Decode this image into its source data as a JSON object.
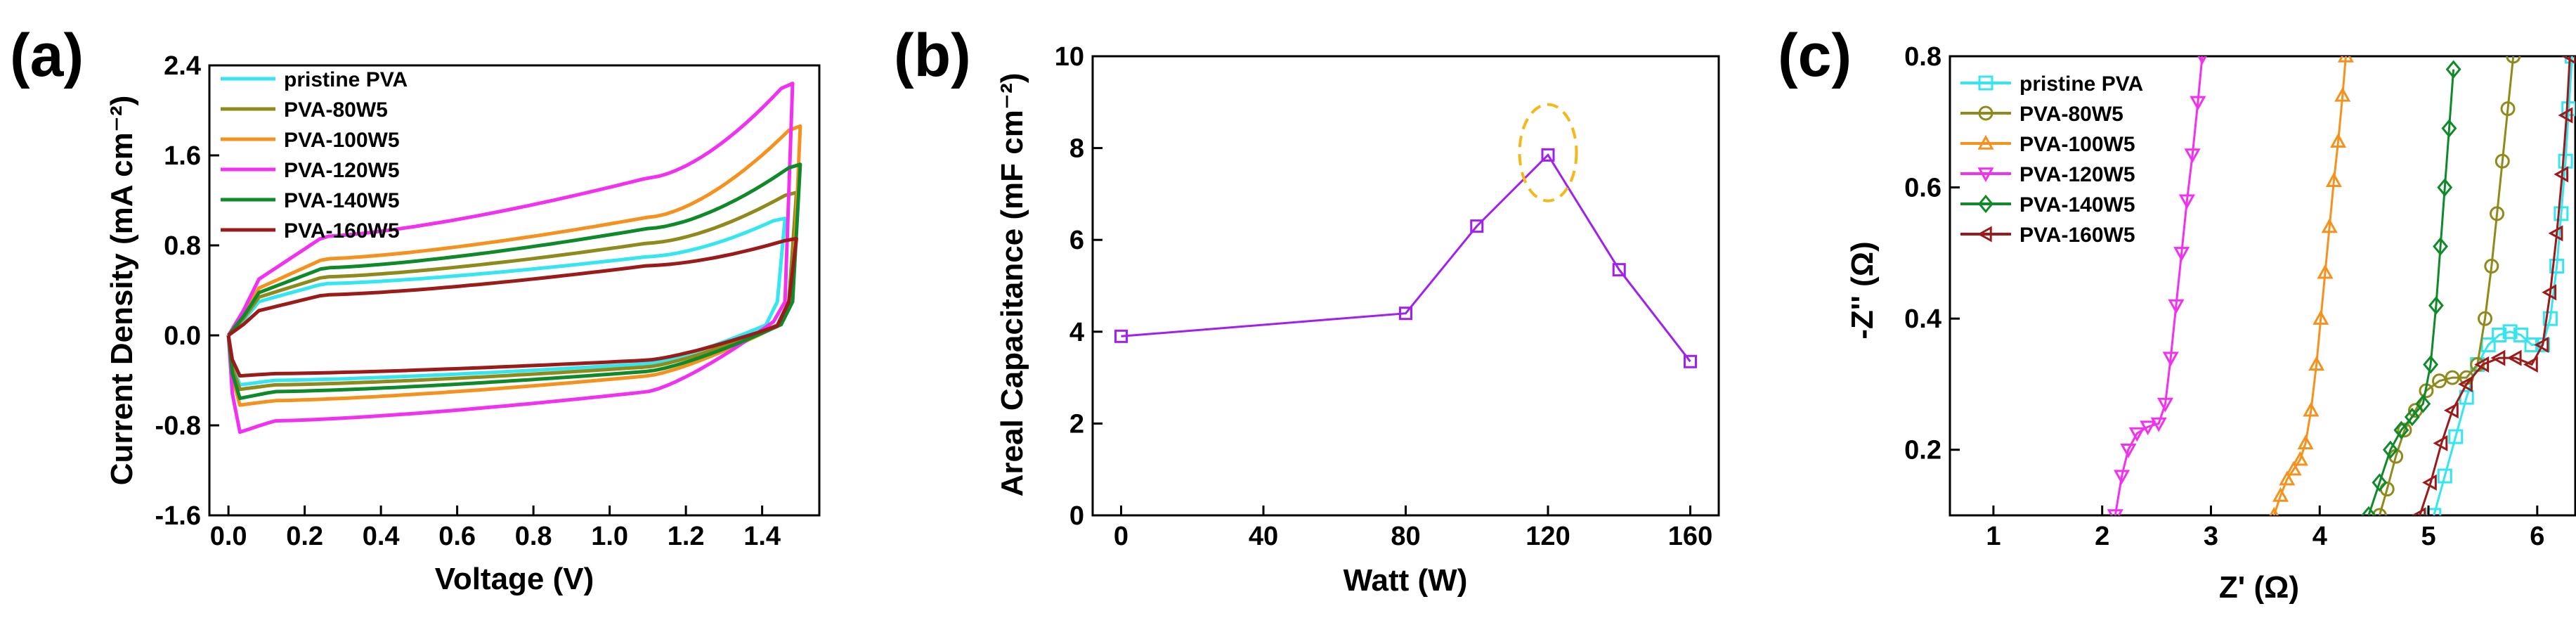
{
  "chart_data": [
    {
      "panel": "(a)",
      "type": "line",
      "title": "",
      "xlabel": "Voltage (V)",
      "ylabel": "Current Density (mA cm⁻²)",
      "xlim": [
        -0.05,
        1.55
      ],
      "ylim": [
        -1.6,
        2.4
      ],
      "xticks": [
        0.0,
        0.2,
        0.4,
        0.6,
        0.8,
        1.0,
        1.2,
        1.4
      ],
      "xtick_labels": [
        "0.0",
        "0.2",
        "0.4",
        "0.6",
        "0.8",
        "1.0",
        "1.2",
        "1.4"
      ],
      "yticks": [
        -1.6,
        -0.8,
        0.0,
        0.8,
        1.6,
        2.4
      ],
      "ytick_labels": [
        "-1.6",
        "-0.8",
        "0.0",
        "0.8",
        "1.6",
        "2.4"
      ],
      "legend_position": "top-left",
      "series": [
        {
          "name": "pristine PVA",
          "color": "#33e6f0",
          "cv": {
            "vmax": 1.46,
            "upper_start": 0.3,
            "upper_mid": 0.46,
            "upper_pre": 0.7,
            "peak": 1.04,
            "lower_start": -0.44,
            "lower_mid": -0.4,
            "lower_pre": -0.25
          }
        },
        {
          "name": "PVA-80W5",
          "color": "#8f8a1c",
          "cv": {
            "vmax": 1.49,
            "upper_start": 0.34,
            "upper_mid": 0.52,
            "upper_pre": 0.82,
            "peak": 1.27,
            "lower_start": -0.48,
            "lower_mid": -0.44,
            "lower_pre": -0.28
          }
        },
        {
          "name": "PVA-100W5",
          "color": "#f5921e",
          "cv": {
            "vmax": 1.5,
            "upper_start": 0.42,
            "upper_mid": 0.68,
            "upper_pre": 1.05,
            "peak": 1.86,
            "lower_start": -0.62,
            "lower_mid": -0.58,
            "lower_pre": -0.36
          }
        },
        {
          "name": "PVA-120W5",
          "color": "#f230f0",
          "cv": {
            "vmax": 1.48,
            "upper_start": 0.5,
            "upper_mid": 0.88,
            "upper_pre": 1.4,
            "peak": 2.24,
            "lower_start": -0.86,
            "lower_mid": -0.76,
            "lower_pre": -0.5
          }
        },
        {
          "name": "PVA-140W5",
          "color": "#0f8a2a",
          "cv": {
            "vmax": 1.5,
            "upper_start": 0.38,
            "upper_mid": 0.6,
            "upper_pre": 0.95,
            "peak": 1.52,
            "lower_start": -0.56,
            "lower_mid": -0.5,
            "lower_pre": -0.32
          }
        },
        {
          "name": "PVA-160W5",
          "color": "#9b1b1b",
          "cv": {
            "vmax": 1.49,
            "upper_start": 0.22,
            "upper_mid": 0.36,
            "upper_pre": 0.62,
            "peak": 0.86,
            "lower_start": -0.36,
            "lower_mid": -0.34,
            "lower_pre": -0.22
          }
        }
      ]
    },
    {
      "panel": "(b)",
      "type": "line",
      "title": "",
      "xlabel": "Watt (W)",
      "ylabel": "Areal Capacitance (mF cm⁻²)",
      "xlim": [
        -8,
        168
      ],
      "ylim": [
        0,
        10
      ],
      "xticks": [
        0,
        40,
        80,
        120,
        160
      ],
      "xtick_labels": [
        "0",
        "40",
        "80",
        "120",
        "160"
      ],
      "yticks": [
        0,
        2,
        4,
        6,
        8,
        10
      ],
      "ytick_labels": [
        "0",
        "2",
        "4",
        "6",
        "8",
        "10"
      ],
      "highlight": {
        "x": 120,
        "y": 7.9,
        "rx": 8,
        "ry": 1.05,
        "color": "#f5b81a"
      },
      "series": [
        {
          "name": "Areal Capacitance",
          "color": "#a020f0",
          "x": [
            0,
            80,
            100,
            120,
            140,
            160
          ],
          "y": [
            3.9,
            4.4,
            6.3,
            7.85,
            5.35,
            3.35
          ]
        }
      ]
    },
    {
      "panel": "(c)",
      "type": "scatter",
      "title": "",
      "xlabel": "Z' (Ω)",
      "ylabel": "-Z'' (Ω)",
      "xlim": [
        0.6,
        6.35
      ],
      "ylim": [
        0.1,
        0.8
      ],
      "xticks": [
        1,
        2,
        3,
        4,
        5,
        6
      ],
      "xtick_labels": [
        "1",
        "2",
        "3",
        "4",
        "5",
        "6"
      ],
      "yticks": [
        0.2,
        0.4,
        0.6,
        0.8
      ],
      "ytick_labels": [
        "0.2",
        "0.4",
        "0.6",
        "0.8"
      ],
      "legend_position": "top-left",
      "series": [
        {
          "name": "pristine PVA",
          "color": "#33e6f0",
          "marker": "square",
          "x": [
            5.05,
            5.15,
            5.25,
            5.35,
            5.45,
            5.55,
            5.65,
            5.75,
            5.85,
            5.95,
            6.05,
            6.12,
            6.18,
            6.22,
            6.26,
            6.29,
            6.32
          ],
          "y": [
            0.1,
            0.16,
            0.22,
            0.28,
            0.33,
            0.36,
            0.375,
            0.38,
            0.375,
            0.36,
            0.36,
            0.4,
            0.48,
            0.56,
            0.64,
            0.72,
            0.8
          ]
        },
        {
          "name": "PVA-80W5",
          "color": "#8f8a1c",
          "marker": "circle",
          "x": [
            4.55,
            4.62,
            4.7,
            4.78,
            4.88,
            4.98,
            5.1,
            5.22,
            5.35,
            5.45,
            5.52,
            5.58,
            5.63,
            5.68,
            5.73,
            5.78
          ],
          "y": [
            0.1,
            0.14,
            0.19,
            0.23,
            0.26,
            0.29,
            0.305,
            0.31,
            0.31,
            0.33,
            0.4,
            0.48,
            0.56,
            0.64,
            0.72,
            0.8
          ]
        },
        {
          "name": "PVA-100W5",
          "color": "#f5921e",
          "marker": "triangle-up",
          "x": [
            3.58,
            3.64,
            3.7,
            3.76,
            3.82,
            3.87,
            3.92,
            3.97,
            4.01,
            4.05,
            4.09,
            4.13,
            4.17,
            4.21,
            4.24
          ],
          "y": [
            0.1,
            0.13,
            0.155,
            0.17,
            0.185,
            0.21,
            0.26,
            0.33,
            0.4,
            0.47,
            0.54,
            0.61,
            0.67,
            0.74,
            0.8
          ]
        },
        {
          "name": "PVA-120W5",
          "color": "#f230f0",
          "marker": "triangle-down",
          "x": [
            2.12,
            2.18,
            2.24,
            2.32,
            2.42,
            2.52,
            2.58,
            2.63,
            2.68,
            2.73,
            2.78,
            2.83,
            2.88,
            2.92
          ],
          "y": [
            0.1,
            0.16,
            0.2,
            0.225,
            0.235,
            0.24,
            0.27,
            0.34,
            0.42,
            0.5,
            0.58,
            0.65,
            0.73,
            0.8
          ]
        },
        {
          "name": "PVA-140W5",
          "color": "#0f8a2a",
          "marker": "diamond",
          "x": [
            4.45,
            4.55,
            4.65,
            4.75,
            4.85,
            4.95,
            5.02,
            5.07,
            5.11,
            5.15,
            5.19,
            5.23
          ],
          "y": [
            0.1,
            0.15,
            0.2,
            0.23,
            0.25,
            0.27,
            0.33,
            0.42,
            0.51,
            0.6,
            0.69,
            0.78
          ]
        },
        {
          "name": "PVA-160W5",
          "color": "#9b1b1b",
          "marker": "triangle-left",
          "x": [
            4.92,
            5.02,
            5.12,
            5.22,
            5.35,
            5.5,
            5.65,
            5.8,
            5.95,
            6.05,
            6.12,
            6.18,
            6.23,
            6.27,
            6.3
          ],
          "y": [
            0.1,
            0.15,
            0.21,
            0.26,
            0.3,
            0.33,
            0.34,
            0.34,
            0.33,
            0.36,
            0.44,
            0.53,
            0.62,
            0.71,
            0.8
          ]
        }
      ]
    }
  ]
}
